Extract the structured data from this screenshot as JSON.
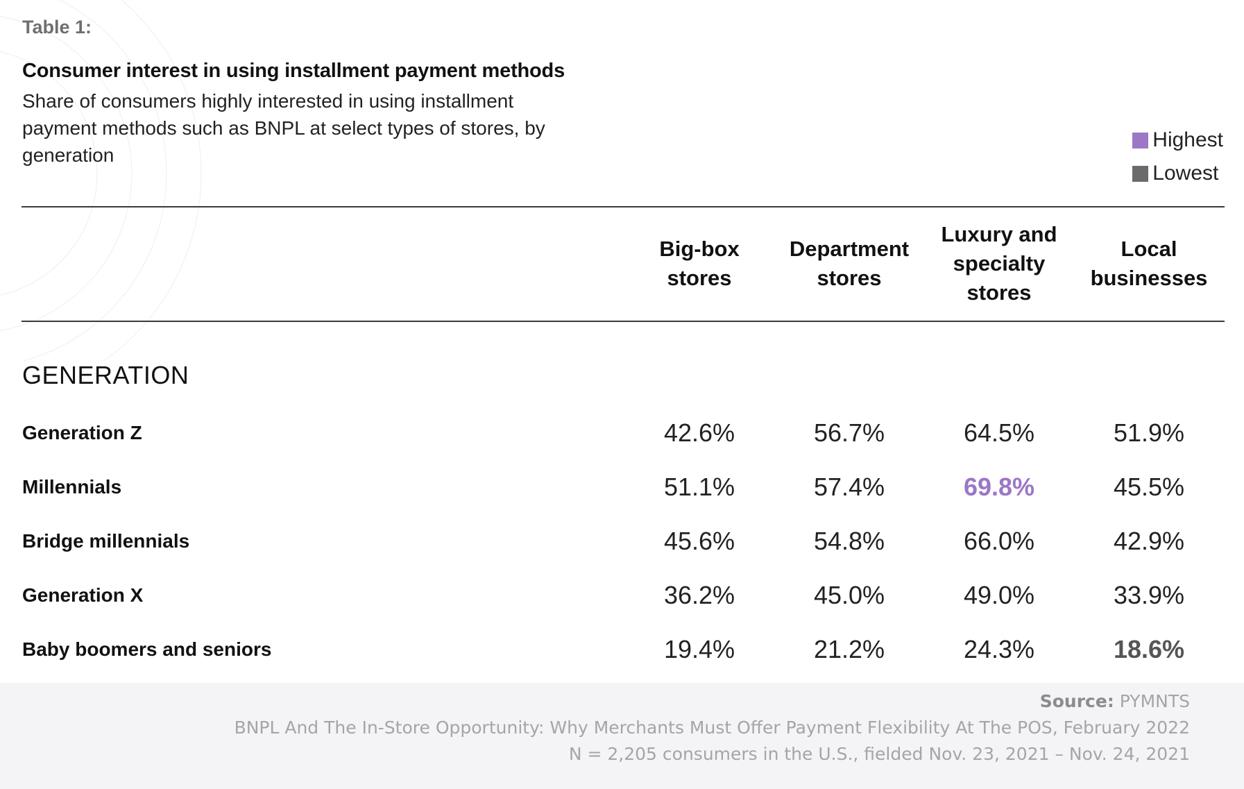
{
  "table_label": "Table 1:",
  "title": "Consumer interest in using installment payment methods",
  "subtitle": "Share of consumers highly interested in using installment payment methods such as BNPL at select types of stores, by generation",
  "legend": {
    "highest": "Highest",
    "lowest": "Lowest",
    "highest_color": "#9b77c6",
    "lowest_color": "#6b6b6b"
  },
  "columns": [
    "Big-box\nstores",
    "Department\nstores",
    "Luxury and\nspecialty\nstores",
    "Local\nbusinesses"
  ],
  "section_label": "GENERATION",
  "rows": [
    {
      "label": "Generation Z",
      "values": [
        "42.6%",
        "56.7%",
        "64.5%",
        "51.9%"
      ],
      "flags": [
        "",
        "",
        "",
        ""
      ]
    },
    {
      "label": "Millennials",
      "values": [
        "51.1%",
        "57.4%",
        "69.8%",
        "45.5%"
      ],
      "flags": [
        "",
        "",
        "highest",
        ""
      ]
    },
    {
      "label": "Bridge millennials",
      "values": [
        "45.6%",
        "54.8%",
        "66.0%",
        "42.9%"
      ],
      "flags": [
        "",
        "",
        "",
        ""
      ]
    },
    {
      "label": "Generation X",
      "values": [
        "36.2%",
        "45.0%",
        "49.0%",
        "33.9%"
      ],
      "flags": [
        "",
        "",
        "",
        ""
      ]
    },
    {
      "label": "Baby boomers and seniors",
      "values": [
        "19.4%",
        "21.2%",
        "24.3%",
        "18.6%"
      ],
      "flags": [
        "",
        "",
        "",
        "lowest"
      ]
    }
  ],
  "footer": {
    "source_label": "Source:",
    "source_value": "PYMNTS",
    "report": "BNPL And The In-Store Opportunity: Why Merchants Must Offer Payment Flexibility At The POS, February 2022",
    "sample": "N = 2,205 consumers in the U.S., fielded Nov. 23, 2021 – Nov. 24, 2021"
  },
  "chart_data": {
    "type": "table",
    "title": "Consumer interest in using installment payment methods",
    "subtitle": "Share of consumers highly interested in using installment payment methods such as BNPL at select types of stores, by generation",
    "columns": [
      "Big-box stores",
      "Department stores",
      "Luxury and specialty stores",
      "Local businesses"
    ],
    "row_group": "GENERATION",
    "rows": [
      "Generation Z",
      "Millennials",
      "Bridge millennials",
      "Generation X",
      "Baby boomers and seniors"
    ],
    "values": [
      [
        42.6,
        56.7,
        64.5,
        51.9
      ],
      [
        51.1,
        57.4,
        69.8,
        45.5
      ],
      [
        45.6,
        54.8,
        66.0,
        42.9
      ],
      [
        36.2,
        45.0,
        49.0,
        33.9
      ],
      [
        19.4,
        21.2,
        24.3,
        18.6
      ]
    ],
    "unit": "%",
    "highest": {
      "row": "Millennials",
      "column": "Luxury and specialty stores",
      "value": 69.8
    },
    "lowest": {
      "row": "Baby boomers and seniors",
      "column": "Local businesses",
      "value": 18.6
    },
    "legend_placement": "top-right"
  }
}
